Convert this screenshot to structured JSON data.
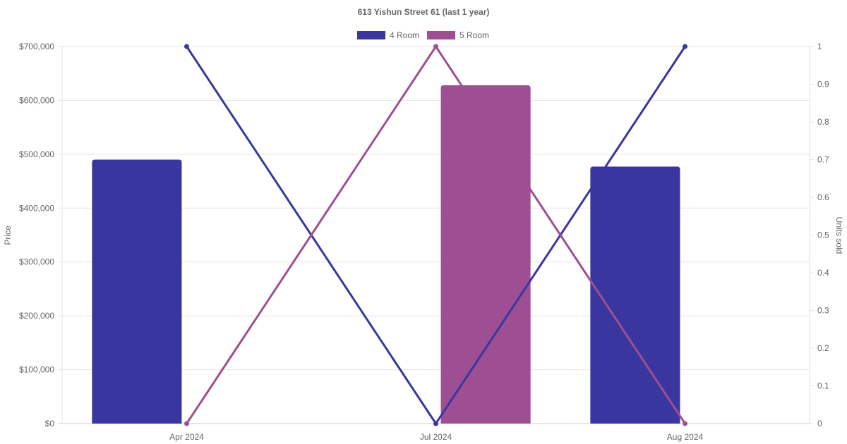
{
  "chart_data": {
    "type": "bar",
    "title": "613 Yishun Street 61 (last 1 year)",
    "categories": [
      "Apr 2024",
      "Jul 2024",
      "Aug 2024"
    ],
    "series": [
      {
        "name": "4 Room",
        "kind": "bar",
        "axis": "left",
        "color": "#3a36a0",
        "values": [
          490000,
          null,
          477000
        ]
      },
      {
        "name": "5 Room",
        "kind": "bar",
        "axis": "left",
        "color": "#9e4f93",
        "values": [
          null,
          628000,
          null
        ]
      },
      {
        "name": "4 Room",
        "kind": "line",
        "axis": "right",
        "color": "#3a36a0",
        "values": [
          1,
          0,
          1
        ]
      },
      {
        "name": "5 Room",
        "kind": "line",
        "axis": "right",
        "color": "#9e4f93",
        "values": [
          0,
          1,
          0
        ]
      }
    ],
    "legend": [
      {
        "name": "4 Room",
        "color": "#3a36a0"
      },
      {
        "name": "5 Room",
        "color": "#9e4f93"
      }
    ],
    "ylabel": "Price",
    "y2label": "Units sold",
    "ylim": [
      0,
      700000
    ],
    "y2lim": [
      0,
      1
    ],
    "yticks": [
      "$0",
      "$100,000",
      "$200,000",
      "$300,000",
      "$400,000",
      "$500,000",
      "$600,000",
      "$700,000"
    ],
    "y2ticks": [
      "0",
      "0.1",
      "0.2",
      "0.3",
      "0.4",
      "0.5",
      "0.6",
      "0.7",
      "0.8",
      "0.9",
      "1"
    ],
    "grid": true,
    "legend_position": "top"
  }
}
